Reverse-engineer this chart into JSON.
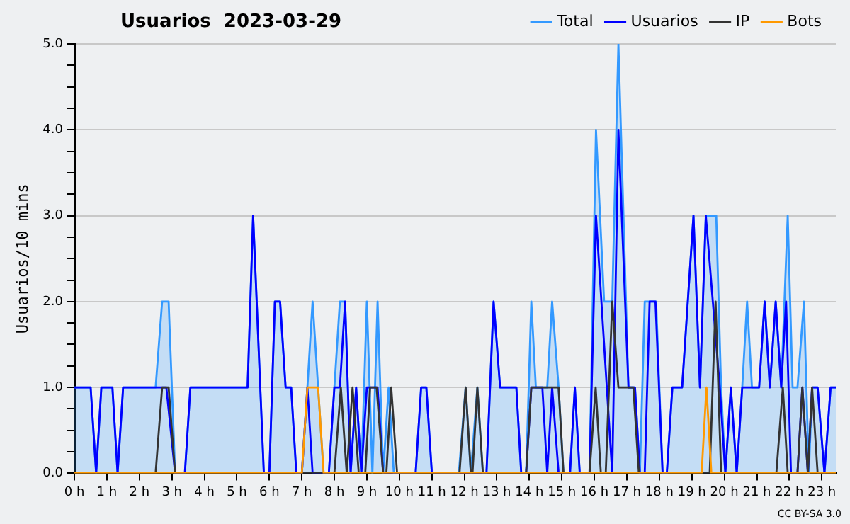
{
  "chart_data": {
    "type": "line",
    "title": "Usuarios  2023-03-29",
    "ylabel": "Usuarios/10 mins",
    "annotations": [
      "CC BY-SA 3.0"
    ],
    "xlim": [
      0,
      23.43
    ],
    "xticks": [
      {
        "value": 0,
        "label": "0 h"
      },
      {
        "value": 1,
        "label": "1 h"
      },
      {
        "value": 2,
        "label": "2 h"
      },
      {
        "value": 3,
        "label": "3 h"
      },
      {
        "value": 4,
        "label": "4 h"
      },
      {
        "value": 5,
        "label": "5 h"
      },
      {
        "value": 6,
        "label": "6 h"
      },
      {
        "value": 7,
        "label": "7 h"
      },
      {
        "value": 8,
        "label": "8 h"
      },
      {
        "value": 9,
        "label": "9 h"
      },
      {
        "value": 10,
        "label": "10 h"
      },
      {
        "value": 11,
        "label": "11 h"
      },
      {
        "value": 12,
        "label": "12 h"
      },
      {
        "value": 13,
        "label": "13 h"
      },
      {
        "value": 14,
        "label": "14 h"
      },
      {
        "value": 15,
        "label": "15 h"
      },
      {
        "value": 16,
        "label": "16 h"
      },
      {
        "value": 17,
        "label": "17 h"
      },
      {
        "value": 18,
        "label": "18 h"
      },
      {
        "value": 19,
        "label": "19 h"
      },
      {
        "value": 20,
        "label": "20 h"
      },
      {
        "value": 21,
        "label": "21 h"
      },
      {
        "value": 22,
        "label": "22 h"
      },
      {
        "value": 23,
        "label": "23 h"
      }
    ],
    "ylim": [
      0,
      5
    ],
    "yticks": [
      {
        "value": 0,
        "label": "0.0"
      },
      {
        "value": 0.25,
        "label": null
      },
      {
        "value": 0.5,
        "label": null
      },
      {
        "value": 0.75,
        "label": null
      },
      {
        "value": 1,
        "label": "1.0"
      },
      {
        "value": 1.25,
        "label": null
      },
      {
        "value": 1.5,
        "label": null
      },
      {
        "value": 1.75,
        "label": null
      },
      {
        "value": 2,
        "label": "2.0"
      },
      {
        "value": 2.25,
        "label": null
      },
      {
        "value": 2.5,
        "label": null
      },
      {
        "value": 2.75,
        "label": null
      },
      {
        "value": 3,
        "label": "3.0"
      },
      {
        "value": 3.25,
        "label": null
      },
      {
        "value": 3.5,
        "label": null
      },
      {
        "value": 3.75,
        "label": null
      },
      {
        "value": 4,
        "label": "4.0"
      },
      {
        "value": 4.25,
        "label": null
      },
      {
        "value": 4.5,
        "label": null
      },
      {
        "value": 4.75,
        "label": null
      },
      {
        "value": 5,
        "label": "5.0"
      }
    ],
    "grid": "y",
    "legend": "top right",
    "marker": "none",
    "line_style": "solid",
    "series": [
      {
        "name": "Total",
        "type": "area",
        "color": "#3399ff",
        "x": [
          0,
          0.5,
          0.67,
          0.83,
          1.17,
          1.33,
          1.5,
          2.5,
          2.7,
          2.9,
          3.1,
          3.4,
          3.57,
          5.33,
          5.5,
          5.83,
          6.0,
          6.17,
          6.33,
          6.5,
          6.67,
          6.83,
          7.0,
          7.17,
          7.33,
          7.5,
          7.67,
          7.83,
          8.0,
          8.17,
          8.33,
          8.5,
          8.67,
          8.83,
          9.0,
          9.17,
          9.33,
          9.5,
          9.67,
          9.83,
          10.5,
          10.67,
          10.83,
          11.0,
          11.83,
          12.04,
          12.2,
          12.4,
          12.57,
          12.68,
          12.9,
          13.1,
          13.6,
          13.75,
          13.9,
          14.06,
          14.2,
          14.4,
          14.55,
          14.7,
          14.9,
          15.05,
          15.25,
          15.4,
          15.55,
          15.85,
          16.05,
          16.3,
          16.55,
          16.74,
          17.05,
          17.25,
          17.4,
          17.55,
          17.9,
          18.1,
          18.23,
          18.4,
          18.7,
          19.05,
          19.25,
          19.43,
          19.75,
          19.9,
          20.03,
          20.2,
          20.38,
          20.55,
          20.7,
          20.85,
          21.07,
          21.24,
          21.4,
          21.58,
          21.75,
          21.95,
          22.1,
          22.25,
          22.45,
          22.6,
          22.7,
          22.87,
          23.08,
          23.27,
          23.43
        ],
        "values": [
          1,
          1,
          0,
          1,
          1,
          0,
          1,
          1,
          2,
          2,
          0,
          0,
          1,
          1,
          3,
          0,
          0,
          2,
          2,
          1,
          1,
          0,
          0,
          1,
          2,
          1,
          0,
          0,
          1,
          2,
          2,
          0,
          1,
          0,
          2,
          0,
          2,
          0,
          1,
          0,
          0,
          1,
          1,
          0,
          0,
          1,
          0,
          1,
          0,
          0,
          2,
          1,
          1,
          0,
          0,
          2,
          1,
          1,
          1,
          2,
          1,
          0,
          0,
          1,
          0,
          0,
          4,
          2,
          2,
          5,
          1,
          1,
          0,
          2,
          2,
          0,
          0,
          1,
          1,
          3,
          1,
          3,
          3,
          1,
          0,
          1,
          0,
          1,
          2,
          1,
          1,
          2,
          1,
          2,
          1,
          3,
          1,
          1,
          2,
          0,
          1,
          1,
          0,
          1,
          1
        ]
      },
      {
        "name": "Usuarios",
        "type": "line",
        "color": "#0000ff",
        "x": [
          0,
          0.5,
          0.67,
          0.83,
          1.17,
          1.33,
          1.5,
          2.83,
          3.1,
          3.4,
          3.57,
          5.33,
          5.5,
          5.83,
          6.0,
          6.17,
          6.33,
          6.5,
          6.67,
          6.83,
          7.0,
          7.17,
          7.33,
          7.83,
          8.0,
          8.17,
          8.33,
          8.5,
          8.67,
          8.83,
          9.0,
          9.33,
          9.5,
          10.5,
          10.67,
          10.83,
          11.0,
          12.68,
          12.9,
          13.1,
          13.6,
          13.75,
          13.9,
          14.06,
          14.4,
          14.55,
          14.7,
          14.9,
          15.25,
          15.4,
          15.55,
          15.85,
          16.05,
          16.55,
          16.74,
          17.05,
          17.25,
          17.4,
          17.55,
          17.7,
          17.88,
          18.1,
          18.23,
          18.4,
          18.7,
          19.05,
          19.25,
          19.43,
          19.86,
          20.03,
          20.2,
          20.38,
          20.55,
          21.07,
          21.24,
          21.4,
          21.58,
          21.75,
          21.9,
          22.05,
          22.25,
          22.4,
          22.57,
          22.7,
          22.87,
          23.08,
          23.27,
          23.43
        ],
        "values": [
          1,
          1,
          0,
          1,
          1,
          0,
          1,
          1,
          0,
          0,
          1,
          1,
          3,
          0,
          0,
          2,
          2,
          1,
          1,
          0,
          0,
          1,
          0,
          0,
          1,
          1,
          2,
          0,
          1,
          0,
          1,
          1,
          0,
          0,
          1,
          1,
          0,
          0,
          2,
          1,
          1,
          0,
          0,
          1,
          1,
          0,
          1,
          0,
          0,
          1,
          0,
          0,
          3,
          0,
          4,
          1,
          1,
          0,
          0,
          2,
          2,
          0,
          0,
          1,
          1,
          3,
          1,
          3,
          1,
          0,
          1,
          0,
          1,
          1,
          2,
          1,
          2,
          1,
          2,
          0,
          0,
          1,
          0,
          1,
          1,
          0,
          1,
          1
        ]
      },
      {
        "name": "IP",
        "type": "line",
        "color": "#333333",
        "x": [
          0,
          2.5,
          2.7,
          2.9,
          3.1,
          8.0,
          8.2,
          8.38,
          8.56,
          8.75,
          8.95,
          9.1,
          9.3,
          9.5,
          9.6,
          9.75,
          9.93,
          11.85,
          12.04,
          12.2,
          12.25,
          12.4,
          12.57,
          13.9,
          14.06,
          14.4,
          14.55,
          14.9,
          15.05,
          15.85,
          16.04,
          16.2,
          16.35,
          16.55,
          16.74,
          17.2,
          17.37,
          19.55,
          19.73,
          19.9,
          21.6,
          21.8,
          21.95,
          22.25,
          22.4,
          22.57,
          22.7,
          22.87,
          23.43
        ],
        "values": [
          0,
          0,
          1,
          1,
          0,
          0,
          1,
          0,
          1,
          0,
          0,
          1,
          1,
          0,
          0,
          1,
          0,
          0,
          1,
          0,
          0,
          1,
          0,
          0,
          1,
          1,
          1,
          1,
          0,
          0,
          1,
          0,
          0,
          2,
          1,
          1,
          0,
          0,
          2,
          0,
          0,
          1,
          0,
          0,
          1,
          0,
          1,
          0,
          0
        ]
      },
      {
        "name": "Bots",
        "type": "line",
        "color": "#ff9900",
        "x": [
          0,
          7.0,
          7.17,
          7.5,
          7.67,
          19.3,
          19.45,
          19.6,
          23.43
        ],
        "values": [
          0,
          0,
          1,
          1,
          0,
          0,
          1,
          0,
          0
        ]
      }
    ]
  }
}
